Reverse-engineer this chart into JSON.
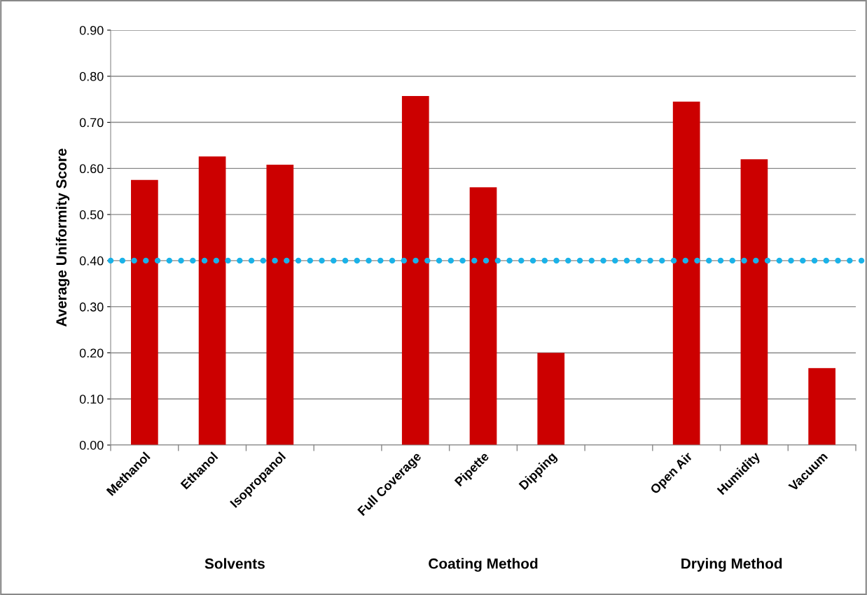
{
  "chart_data": {
    "type": "bar",
    "ylabel": "Average Uniformity Score",
    "categories": [
      "Methanol",
      "Ethanol",
      "Isopropanol",
      null,
      "Full Coverage",
      "Pipette",
      "Dipping",
      null,
      "Open Air",
      "Humidity",
      "Vacuum"
    ],
    "values": [
      0.575,
      0.626,
      0.608,
      null,
      0.757,
      0.559,
      0.2,
      null,
      0.745,
      0.62,
      0.167
    ],
    "color": "#cc0000",
    "ylim": [
      0,
      0.9
    ],
    "yticks": [
      {
        "value": 0,
        "label": "0.00"
      },
      {
        "value": 0.1,
        "label": "0.10"
      },
      {
        "value": 0.2,
        "label": "0.20"
      },
      {
        "value": 0.3,
        "label": "0.30"
      },
      {
        "value": 0.4,
        "label": "0.40"
      },
      {
        "value": 0.5,
        "label": "0.50"
      },
      {
        "value": 0.6,
        "label": "0.60"
      },
      {
        "value": 0.7,
        "label": "0.70"
      },
      {
        "value": 0.8,
        "label": "0.80"
      },
      {
        "value": 0.9,
        "label": "0.90"
      }
    ],
    "grid": "y",
    "ref_lines": [
      {
        "axis": "y",
        "value": 0.4,
        "color": "#1ab2e8",
        "line_style": "dotted"
      }
    ],
    "annotations": [
      "Solvents",
      "Coating Method",
      "Drying Method"
    ]
  }
}
